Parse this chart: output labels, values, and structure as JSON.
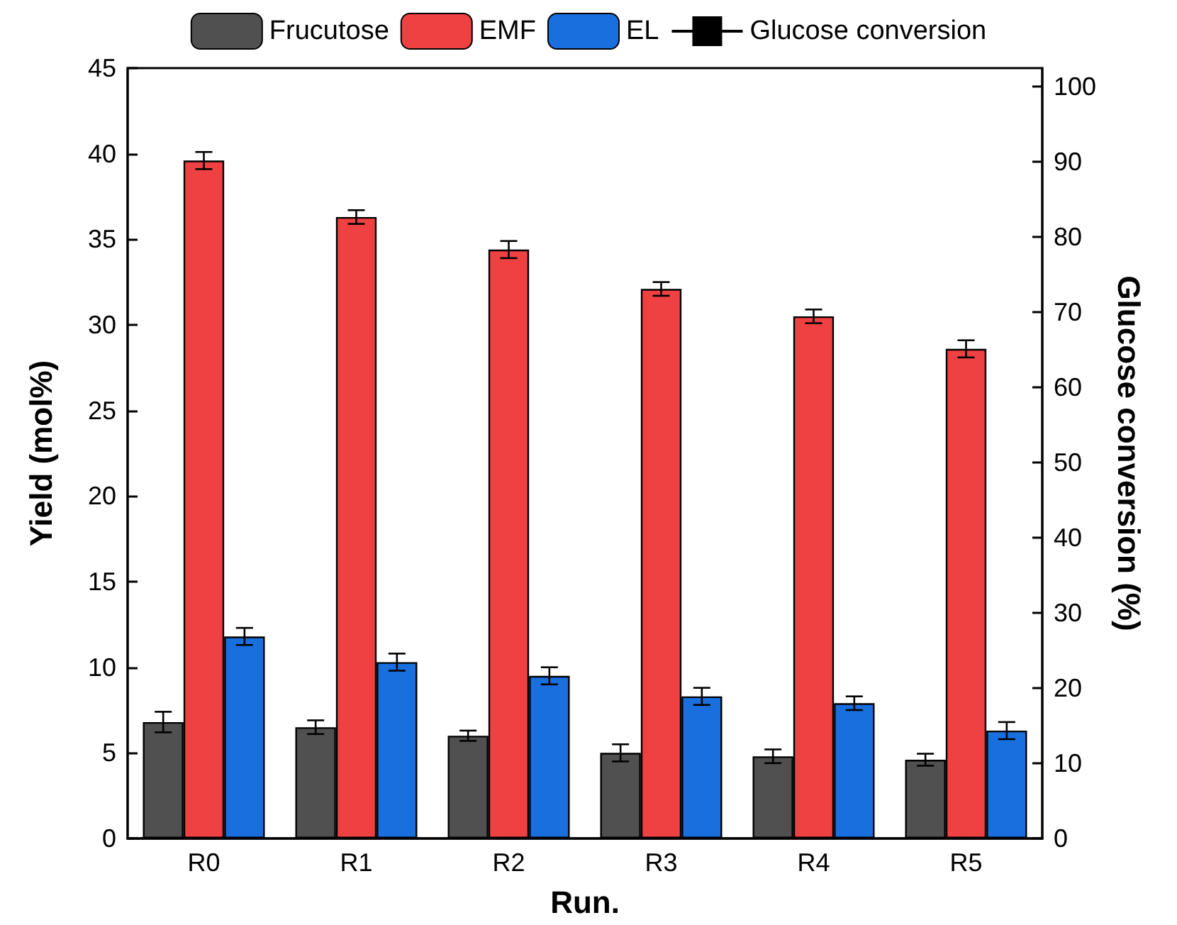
{
  "chart_data": {
    "type": "bar",
    "xlabel": "Run.",
    "ylabel": "Yield (mol%)",
    "y2label": "Glucose conversion (%)",
    "categories": [
      "R0",
      "R1",
      "R2",
      "R3",
      "R4",
      "R5"
    ],
    "series": [
      {
        "name": "Frucutose",
        "color": "#505050",
        "values": [
          6.8,
          6.5,
          6.0,
          5.0,
          4.8,
          4.6
        ],
        "errors": [
          0.6,
          0.4,
          0.3,
          0.5,
          0.4,
          0.35
        ]
      },
      {
        "name": "EMF",
        "color": "#f04142",
        "values": [
          39.6,
          36.3,
          34.4,
          32.1,
          30.5,
          28.6
        ],
        "errors": [
          0.5,
          0.4,
          0.5,
          0.4,
          0.4,
          0.5
        ]
      },
      {
        "name": "EL",
        "color": "#1a6fdf",
        "values": [
          11.8,
          10.3,
          9.5,
          8.3,
          7.9,
          6.3
        ],
        "errors": [
          0.5,
          0.5,
          0.5,
          0.5,
          0.4,
          0.5
        ]
      },
      {
        "name": "Glucose conversion",
        "type": "line",
        "color": "#000000",
        "marker": "square",
        "values": [
          null,
          null,
          null,
          null,
          null,
          null
        ]
      }
    ],
    "ylim": [
      0,
      45
    ],
    "yticks": [
      0,
      5,
      10,
      15,
      20,
      25,
      30,
      35,
      40,
      45
    ],
    "y2lim": [
      0,
      102.5
    ],
    "y2ticks": [
      0,
      10,
      20,
      30,
      40,
      50,
      60,
      70,
      80,
      90,
      100
    ],
    "grid": false,
    "legend": "top"
  }
}
